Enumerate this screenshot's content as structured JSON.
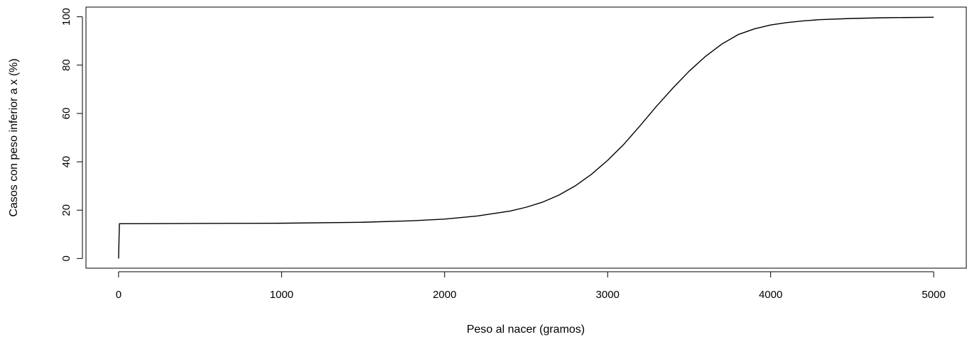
{
  "chart_data": {
    "type": "line",
    "title": "",
    "xlabel": "Peso al nacer (gramos)",
    "ylabel": "Casos con peso inferior a x (%)",
    "xlim": [
      -200,
      5200
    ],
    "ylim": [
      -4,
      104
    ],
    "xticks": [
      0,
      1000,
      2000,
      3000,
      4000,
      5000
    ],
    "xtick_labels": [
      "0",
      "1000",
      "2000",
      "3000",
      "4000",
      "5000"
    ],
    "yticks": [
      0,
      20,
      40,
      60,
      80,
      100
    ],
    "ytick_labels": [
      "0",
      "20",
      "40",
      "60",
      "80",
      "100"
    ],
    "grid": false,
    "legend": "none",
    "color": "#000000",
    "series": [
      {
        "x": [
          0,
          5,
          100,
          500,
          1000,
          1500,
          1800,
          2000,
          2200,
          2400,
          2500,
          2600,
          2700,
          2800,
          2900,
          3000,
          3100,
          3200,
          3300,
          3400,
          3500,
          3600,
          3700,
          3800,
          3900,
          4000,
          4100,
          4200,
          4300,
          4500,
          4700,
          5000
        ],
        "y": [
          0,
          14.4,
          14.4,
          14.5,
          14.6,
          15.0,
          15.6,
          16.3,
          17.6,
          19.6,
          21.2,
          23.3,
          26.2,
          30.0,
          34.8,
          40.6,
          47.3,
          55.0,
          63.0,
          70.5,
          77.5,
          83.6,
          88.7,
          92.6,
          95.0,
          96.6,
          97.6,
          98.3,
          98.8,
          99.3,
          99.6,
          99.8
        ]
      }
    ]
  }
}
